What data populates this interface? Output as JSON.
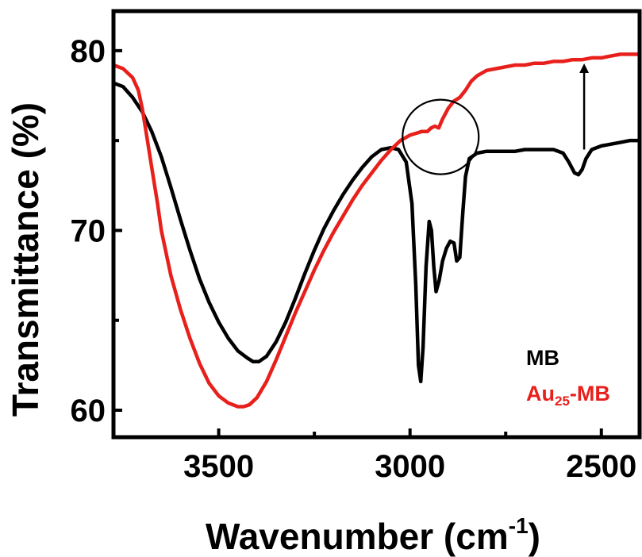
{
  "chart_data": {
    "type": "line",
    "xlabel": "Wavenumber (cm",
    "xlabel_sup": "-1",
    "xlabel_close": ")",
    "ylabel": "Transmittance (%)",
    "xlim": [
      3775,
      2400
    ],
    "ylim": [
      58.5,
      82.2
    ],
    "x_reversed": true,
    "x_ticks": [
      3500,
      3000,
      2500
    ],
    "x_tick_labels": [
      "3500",
      "3000",
      "2500"
    ],
    "x_minor_ticks": [
      3250,
      2750
    ],
    "y_ticks": [
      60,
      70,
      80
    ],
    "y_tick_labels": [
      "60",
      "70",
      "80"
    ],
    "y_minor_ticks": [
      65,
      75
    ],
    "grid": false,
    "legend_position": "bottom-right",
    "series": [
      {
        "name": "MB",
        "color": "#000000",
        "points": [
          [
            3775,
            78.2
          ],
          [
            3750,
            78.0
          ],
          [
            3725,
            77.4
          ],
          [
            3700,
            76.6
          ],
          [
            3675,
            75.5
          ],
          [
            3650,
            74.1
          ],
          [
            3625,
            72.4
          ],
          [
            3600,
            70.6
          ],
          [
            3575,
            68.9
          ],
          [
            3550,
            67.3
          ],
          [
            3525,
            66.0
          ],
          [
            3500,
            64.9
          ],
          [
            3475,
            64.0
          ],
          [
            3450,
            63.3
          ],
          [
            3425,
            62.9
          ],
          [
            3410,
            62.7
          ],
          [
            3395,
            62.7
          ],
          [
            3375,
            63.0
          ],
          [
            3350,
            63.8
          ],
          [
            3325,
            64.9
          ],
          [
            3300,
            66.2
          ],
          [
            3275,
            67.6
          ],
          [
            3250,
            68.9
          ],
          [
            3225,
            70.1
          ],
          [
            3200,
            71.1
          ],
          [
            3175,
            72.0
          ],
          [
            3150,
            72.8
          ],
          [
            3125,
            73.5
          ],
          [
            3100,
            74.1
          ],
          [
            3075,
            74.5
          ],
          [
            3050,
            74.6
          ],
          [
            3030,
            74.5
          ],
          [
            3010,
            73.8
          ],
          [
            2995,
            71.5
          ],
          [
            2985,
            67.0
          ],
          [
            2978,
            62.5
          ],
          [
            2972,
            61.6
          ],
          [
            2966,
            63.5
          ],
          [
            2958,
            68.0
          ],
          [
            2950,
            70.5
          ],
          [
            2944,
            70.0
          ],
          [
            2938,
            68.0
          ],
          [
            2932,
            66.6
          ],
          [
            2924,
            67.2
          ],
          [
            2915,
            68.3
          ],
          [
            2905,
            69.0
          ],
          [
            2895,
            69.4
          ],
          [
            2885,
            69.3
          ],
          [
            2878,
            68.3
          ],
          [
            2870,
            68.5
          ],
          [
            2862,
            71.0
          ],
          [
            2855,
            73.0
          ],
          [
            2845,
            74.0
          ],
          [
            2825,
            74.3
          ],
          [
            2800,
            74.4
          ],
          [
            2775,
            74.4
          ],
          [
            2750,
            74.4
          ],
          [
            2725,
            74.4
          ],
          [
            2700,
            74.5
          ],
          [
            2675,
            74.5
          ],
          [
            2650,
            74.5
          ],
          [
            2625,
            74.5
          ],
          [
            2600,
            74.3
          ],
          [
            2585,
            73.8
          ],
          [
            2570,
            73.2
          ],
          [
            2560,
            73.1
          ],
          [
            2550,
            73.4
          ],
          [
            2540,
            74.0
          ],
          [
            2525,
            74.5
          ],
          [
            2500,
            74.7
          ],
          [
            2475,
            74.8
          ],
          [
            2450,
            74.9
          ],
          [
            2425,
            75.0
          ],
          [
            2400,
            75.0
          ]
        ]
      },
      {
        "name": "Au",
        "name_sub": "25",
        "name_suffix": "-MB",
        "color": "#e8201c",
        "points": [
          [
            3775,
            79.2
          ],
          [
            3750,
            79.0
          ],
          [
            3725,
            78.5
          ],
          [
            3710,
            77.8
          ],
          [
            3700,
            76.8
          ],
          [
            3690,
            75.5
          ],
          [
            3675,
            73.5
          ],
          [
            3660,
            71.5
          ],
          [
            3650,
            70.0
          ],
          [
            3625,
            67.5
          ],
          [
            3600,
            65.6
          ],
          [
            3575,
            64.0
          ],
          [
            3550,
            62.6
          ],
          [
            3525,
            61.5
          ],
          [
            3500,
            60.8
          ],
          [
            3475,
            60.4
          ],
          [
            3450,
            60.2
          ],
          [
            3435,
            60.2
          ],
          [
            3420,
            60.3
          ],
          [
            3400,
            60.7
          ],
          [
            3375,
            61.6
          ],
          [
            3350,
            62.8
          ],
          [
            3325,
            64.1
          ],
          [
            3300,
            65.4
          ],
          [
            3275,
            66.6
          ],
          [
            3250,
            67.8
          ],
          [
            3225,
            68.9
          ],
          [
            3200,
            69.9
          ],
          [
            3175,
            70.8
          ],
          [
            3150,
            71.7
          ],
          [
            3125,
            72.5
          ],
          [
            3100,
            73.2
          ],
          [
            3075,
            73.9
          ],
          [
            3050,
            74.5
          ],
          [
            3025,
            75.0
          ],
          [
            3000,
            75.3
          ],
          [
            2985,
            75.4
          ],
          [
            2970,
            75.5
          ],
          [
            2955,
            75.5
          ],
          [
            2945,
            75.7
          ],
          [
            2935,
            75.8
          ],
          [
            2925,
            75.7
          ],
          [
            2915,
            76.2
          ],
          [
            2900,
            76.8
          ],
          [
            2885,
            77.2
          ],
          [
            2870,
            77.4
          ],
          [
            2855,
            77.8
          ],
          [
            2840,
            78.3
          ],
          [
            2825,
            78.6
          ],
          [
            2800,
            78.9
          ],
          [
            2775,
            79.0
          ],
          [
            2750,
            79.1
          ],
          [
            2725,
            79.2
          ],
          [
            2700,
            79.2
          ],
          [
            2675,
            79.3
          ],
          [
            2650,
            79.3
          ],
          [
            2625,
            79.4
          ],
          [
            2600,
            79.4
          ],
          [
            2575,
            79.5
          ],
          [
            2550,
            79.5
          ],
          [
            2525,
            79.6
          ],
          [
            2500,
            79.6
          ],
          [
            2475,
            79.7
          ],
          [
            2450,
            79.8
          ],
          [
            2425,
            79.8
          ],
          [
            2400,
            79.8
          ]
        ]
      }
    ],
    "annotations": [
      {
        "type": "circle",
        "x": 2920,
        "y": 75.2,
        "note": "highlighted region"
      },
      {
        "type": "arrow",
        "x": 2545,
        "from_y": 74.5,
        "to_y": 79.2,
        "direction": "up"
      }
    ]
  }
}
